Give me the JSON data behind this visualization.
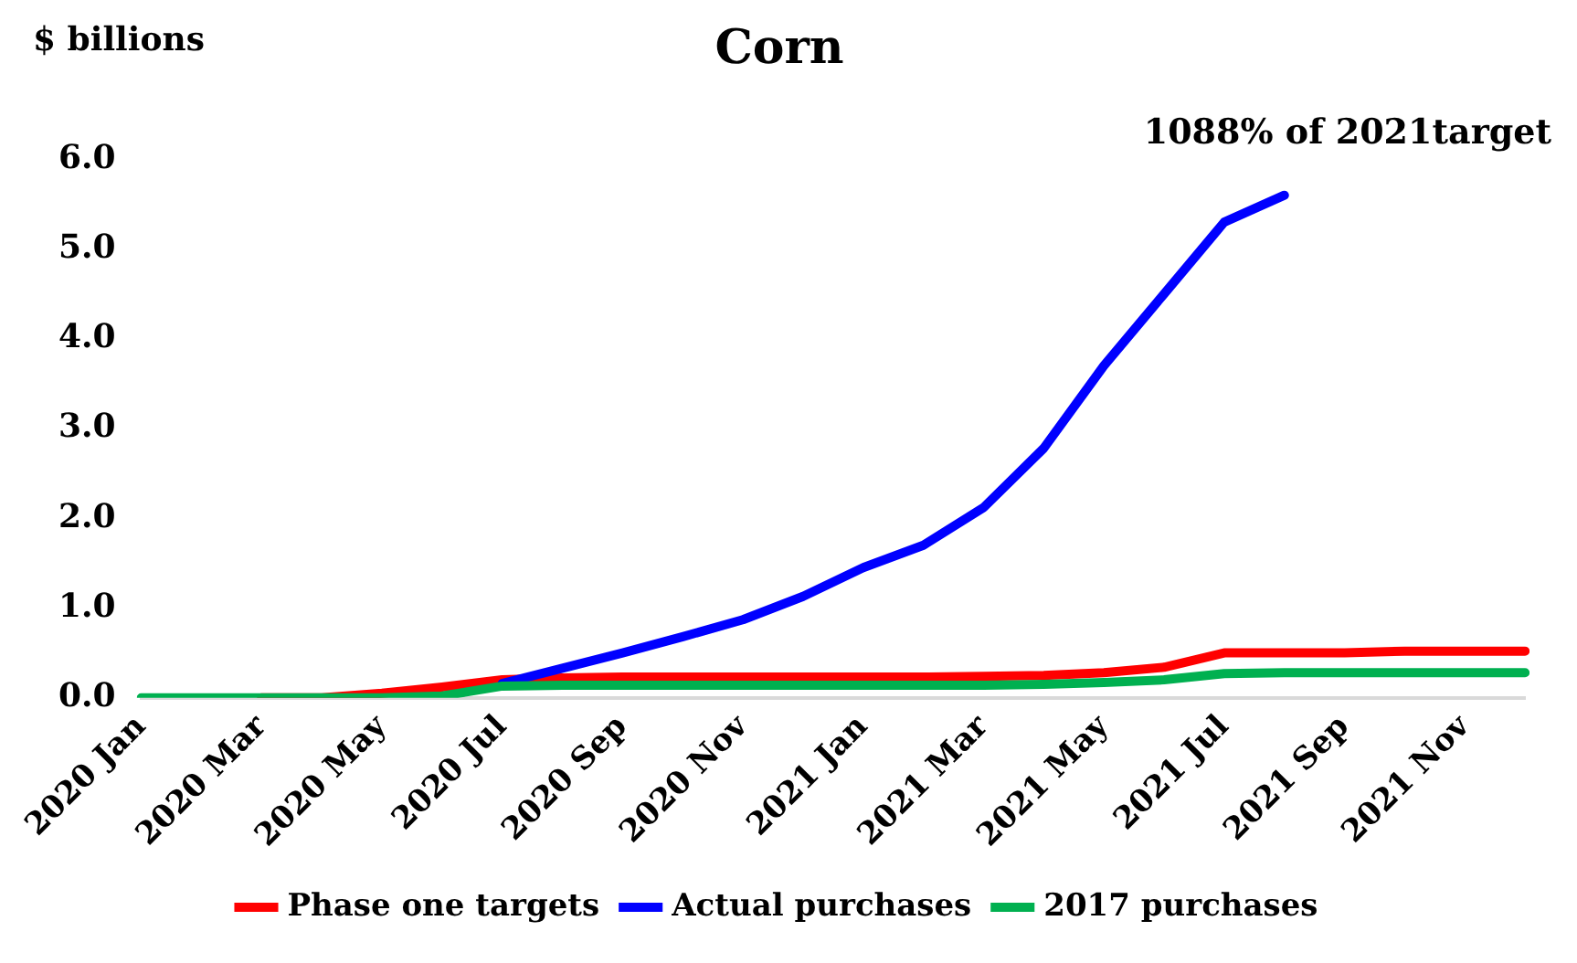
{
  "chart_data": {
    "type": "line",
    "title": "Corn",
    "ylabel": "$ billions",
    "categories": [
      "2020 Jan",
      null,
      "2020 Mar",
      null,
      "2020 May",
      null,
      "2020 Jul",
      null,
      "2020 Sep",
      null,
      "2020 Nov",
      null,
      "2021 Jan",
      null,
      "2021 Mar",
      null,
      "2021 May",
      null,
      "2021 Jul",
      null,
      "2021 Sep",
      null,
      "2021 Nov",
      null
    ],
    "series": [
      {
        "name": "Phase one targets",
        "color": "#ff0000",
        "values": [
          null,
          null,
          0,
          0,
          0.05,
          0.12,
          0.2,
          0.22,
          0.23,
          0.23,
          0.23,
          0.23,
          0.23,
          0.23,
          0.24,
          0.25,
          0.28,
          0.34,
          0.5,
          0.5,
          0.5,
          0.52,
          0.52,
          0.52
        ]
      },
      {
        "name": "Actual purchases",
        "color": "#0000ff",
        "values": [
          null,
          null,
          null,
          null,
          null,
          null,
          0.16,
          0.33,
          0.5,
          0.68,
          0.87,
          1.13,
          1.45,
          1.7,
          2.12,
          2.78,
          3.7,
          4.5,
          5.3,
          5.6,
          null,
          null,
          null,
          null
        ]
      },
      {
        "name": "2017 purchases",
        "color": "#00b050",
        "values": [
          0,
          0,
          0,
          0,
          0,
          0.02,
          0.13,
          0.14,
          0.14,
          0.14,
          0.14,
          0.14,
          0.14,
          0.14,
          0.14,
          0.15,
          0.17,
          0.2,
          0.27,
          0.28,
          0.28,
          0.28,
          0.28,
          0.28
        ]
      }
    ],
    "ylim": [
      0,
      6
    ],
    "yticks": [
      {
        "value": 0,
        "label": "0.0"
      },
      {
        "value": 1,
        "label": "1.0"
      },
      {
        "value": 2,
        "label": "2.0"
      },
      {
        "value": 3,
        "label": "3.0"
      },
      {
        "value": 4,
        "label": "4.0"
      },
      {
        "value": 5,
        "label": "5.0"
      },
      {
        "value": 6,
        "label": "6.0"
      }
    ],
    "annotations": [
      "1088% of 2021target"
    ],
    "grid": false,
    "legend": "bottom",
    "marker": "none",
    "line_style": "solid"
  }
}
